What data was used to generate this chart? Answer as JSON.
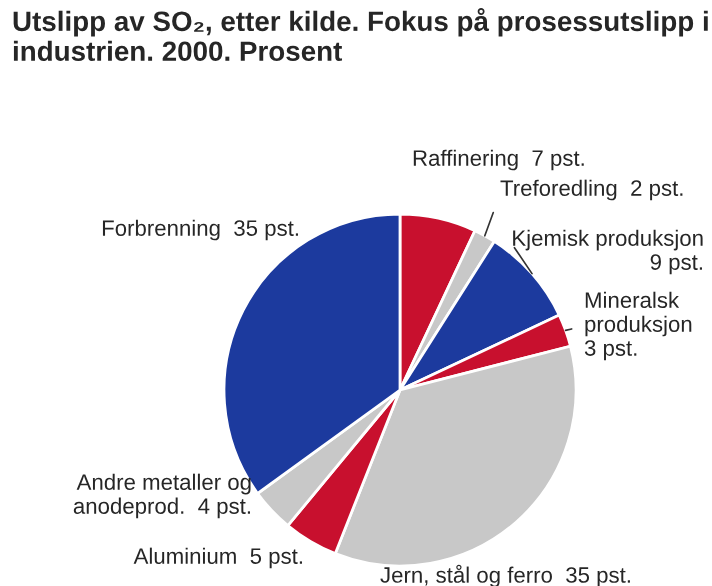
{
  "chart_data": {
    "type": "pie",
    "title": "Utslipp av SO₂, etter kilde. Fokus på prosessutslipp i industrien. 2000. Prosent",
    "categories": [
      "Raffinering",
      "Treforedling",
      "Kjemisk produksjon",
      "Mineralsk\nproduksjon",
      "Jern, stål og ferro",
      "Aluminium",
      "Andre metaller og\nanodeprod.",
      "Forbrenning"
    ],
    "values": [
      7,
      2,
      9,
      3,
      35,
      5,
      4,
      35
    ],
    "value_labels": [
      "7 pst.",
      "2 pst.",
      "9 pst.",
      "3 pst.",
      "35 pst.",
      "5 pst.",
      "4 pst.",
      "35 pst."
    ],
    "colors": [
      "#c8102e",
      "#c8c8c8",
      "#1c3a9e",
      "#c8102e",
      "#c8c8c8",
      "#c8102e",
      "#c8c8c8",
      "#1c3a9e"
    ]
  }
}
